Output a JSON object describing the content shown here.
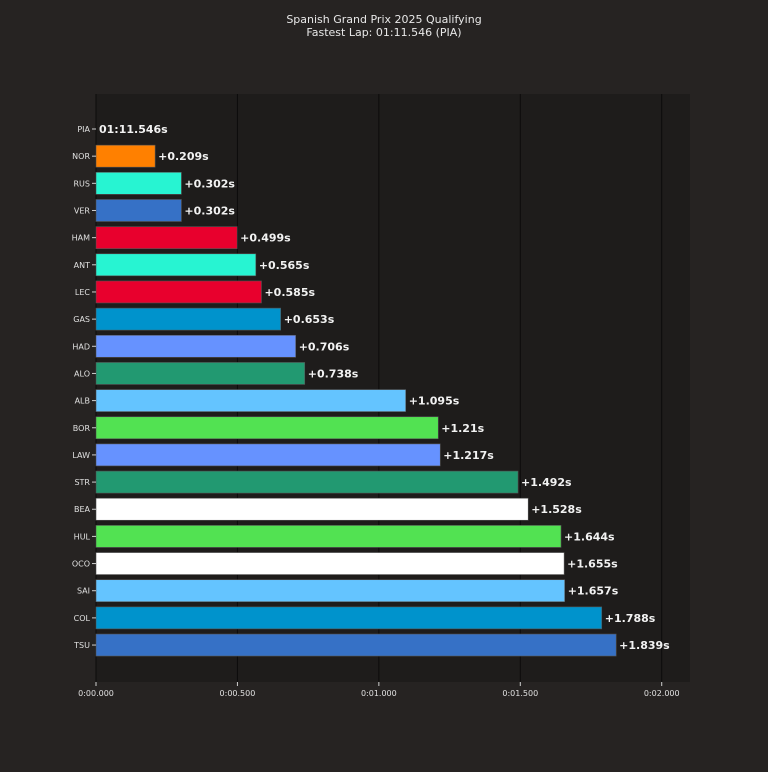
{
  "chart_data": {
    "type": "bar",
    "orientation": "horizontal",
    "title": "Spanish Grand Prix 2025 Qualifying",
    "subtitle": "Fastest Lap: 01:11.546 (PIA)",
    "xlabel": "",
    "ylabel": "",
    "xlim": [
      0,
      2.1
    ],
    "x_ticks": [
      {
        "value": 0,
        "label": "0:00.000"
      },
      {
        "value": 0.5,
        "label": "0:00.500"
      },
      {
        "value": 1.0,
        "label": "0:01.000"
      },
      {
        "value": 1.5,
        "label": "0:01.500"
      },
      {
        "value": 2.0,
        "label": "0:02.000"
      }
    ],
    "grid": "x-major",
    "categories": [
      "PIA",
      "NOR",
      "RUS",
      "VER",
      "HAM",
      "ANT",
      "LEC",
      "GAS",
      "HAD",
      "ALO",
      "ALB",
      "BOR",
      "LAW",
      "STR",
      "BEA",
      "HUL",
      "OCO",
      "SAI",
      "COL",
      "TSU"
    ],
    "values": [
      0,
      0.209,
      0.302,
      0.302,
      0.499,
      0.565,
      0.585,
      0.653,
      0.706,
      0.738,
      1.095,
      1.21,
      1.217,
      1.492,
      1.528,
      1.644,
      1.655,
      1.657,
      1.788,
      1.839
    ],
    "value_labels": [
      "01:11.546s",
      "+0.209s",
      "+0.302s",
      "+0.302s",
      "+0.499s",
      "+0.565s",
      "+0.585s",
      "+0.653s",
      "+0.706s",
      "+0.738s",
      "+1.095s",
      "+1.21s",
      "+1.217s",
      "+1.492s",
      "+1.528s",
      "+1.644s",
      "+1.655s",
      "+1.657s",
      "+1.788s",
      "+1.839s"
    ],
    "colors": [
      "#ff8000",
      "#ff8000",
      "#27f4d2",
      "#3671c6",
      "#e8002d",
      "#27f4d2",
      "#e8002d",
      "#0093cc",
      "#6692ff",
      "#229971",
      "#64c4ff",
      "#52e252",
      "#6692ff",
      "#229971",
      "#ffffff",
      "#52e252",
      "#ffffff",
      "#64c4ff",
      "#0093cc",
      "#3671c6"
    ]
  }
}
